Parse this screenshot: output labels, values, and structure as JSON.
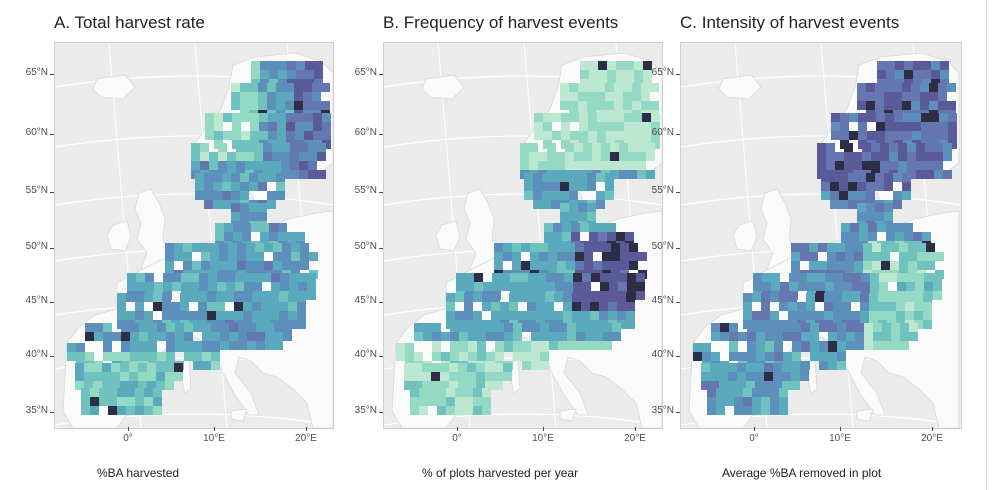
{
  "palette": [
    "#f4fbf4",
    "#d9f2e0",
    "#bce8d1",
    "#93d9c3",
    "#6fc2be",
    "#5aa9bd",
    "#5c8fba",
    "#6477b0",
    "#5a5a99",
    "#2d2d45"
  ],
  "lat_labels": [
    "65°N",
    "60°N",
    "55°N",
    "50°N",
    "45°N",
    "40°N",
    "35°N"
  ],
  "lon_labels": [
    "0°",
    "10°E",
    "20°E"
  ],
  "panels": [
    {
      "title": "A. Total harvest rate",
      "legend_title": "%BA harvested",
      "pattern": "total"
    },
    {
      "title": "B. Frequency of harvest events",
      "legend_title": "% of plots harvested per year",
      "pattern": "frequency"
    },
    {
      "title": "C. Intensity of harvest events",
      "legend_title": "Average %BA removed in plot",
      "pattern": "intensity"
    }
  ]
}
